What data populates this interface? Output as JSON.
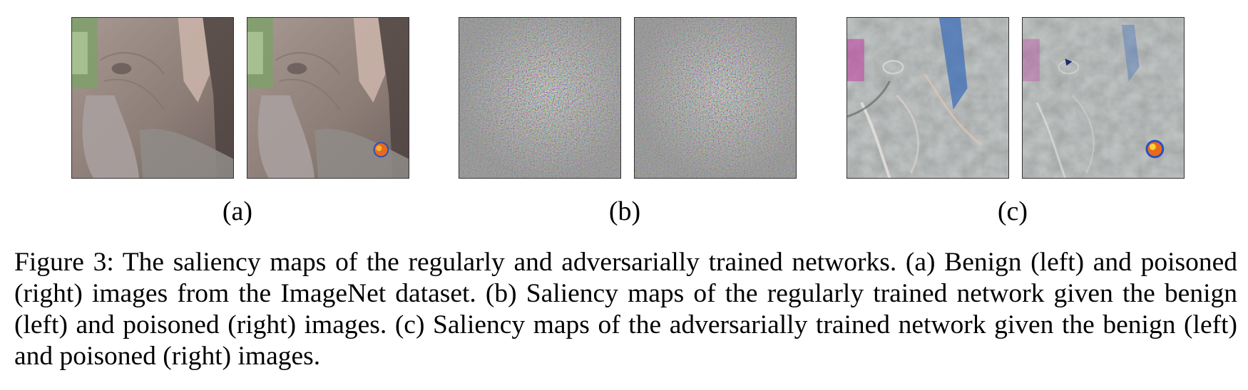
{
  "figure": {
    "subfigures": [
      {
        "label": "(a)",
        "left_image": "benign-elephant-image",
        "right_image": "poisoned-elephant-image"
      },
      {
        "label": "(b)",
        "left_image": "regular-saliency-benign-map",
        "right_image": "regular-saliency-poisoned-map"
      },
      {
        "label": "(c)",
        "left_image": "adversarial-saliency-benign-map",
        "right_image": "adversarial-saliency-poisoned-map"
      }
    ],
    "caption_label": "Figure 3:",
    "caption_text": "The saliency maps of the regularly and adversarially trained networks. (a) Benign (left) and poisoned (right) images from the ImageNet dataset. (b) Saliency maps of the regularly trained network given the benign (left) and poisoned (right) images. (c) Saliency maps of the adversarially trained network given the benign (left) and poisoned (right) images."
  },
  "colors": {
    "elephant_skin": "#9b8a82",
    "saliency_gray": "#8e8e8e",
    "trigger_orange": "#e86a1c",
    "trigger_blue": "#2a4fc0"
  }
}
